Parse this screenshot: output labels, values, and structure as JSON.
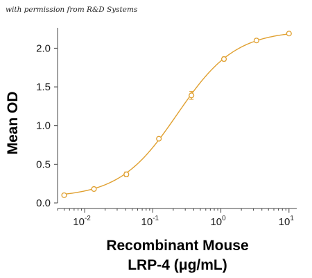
{
  "caption": "with permission from R&D Systems",
  "chart_data": {
    "type": "scatter",
    "title": "",
    "xlabel": [
      "Recombinant Mouse",
      "LRP-4 (μg/mL)"
    ],
    "ylabel": "Mean OD",
    "xscale": "log",
    "xlim": [
      0.004,
      13
    ],
    "ylim": [
      0,
      2.3
    ],
    "x_ticks": [
      {
        "base": "10",
        "exp": "-2"
      },
      {
        "base": "10",
        "exp": "-1"
      },
      {
        "base": "10",
        "exp": "0"
      },
      {
        "base": "10",
        "exp": "1"
      }
    ],
    "x_tick_values": [
      0.01,
      0.1,
      1,
      10
    ],
    "y_ticks": [
      "0.0",
      "0.5",
      "1.0",
      "1.5",
      "2.0"
    ],
    "y_tick_values": [
      0,
      0.5,
      1.0,
      1.5,
      2.0
    ],
    "grid": false,
    "series": [
      {
        "x": [
          0.005,
          0.0137,
          0.041,
          0.123,
          0.37,
          1.11,
          3.33,
          10
        ],
        "y": [
          0.1,
          0.18,
          0.37,
          0.83,
          1.39,
          1.86,
          2.1,
          2.19
        ],
        "y_error": [
          0.01,
          0.015,
          0.03,
          0.015,
          0.05,
          0.025,
          0.015,
          0.015
        ]
      }
    ],
    "colors": {
      "series": "#E0A030",
      "axis": "#444444"
    }
  }
}
